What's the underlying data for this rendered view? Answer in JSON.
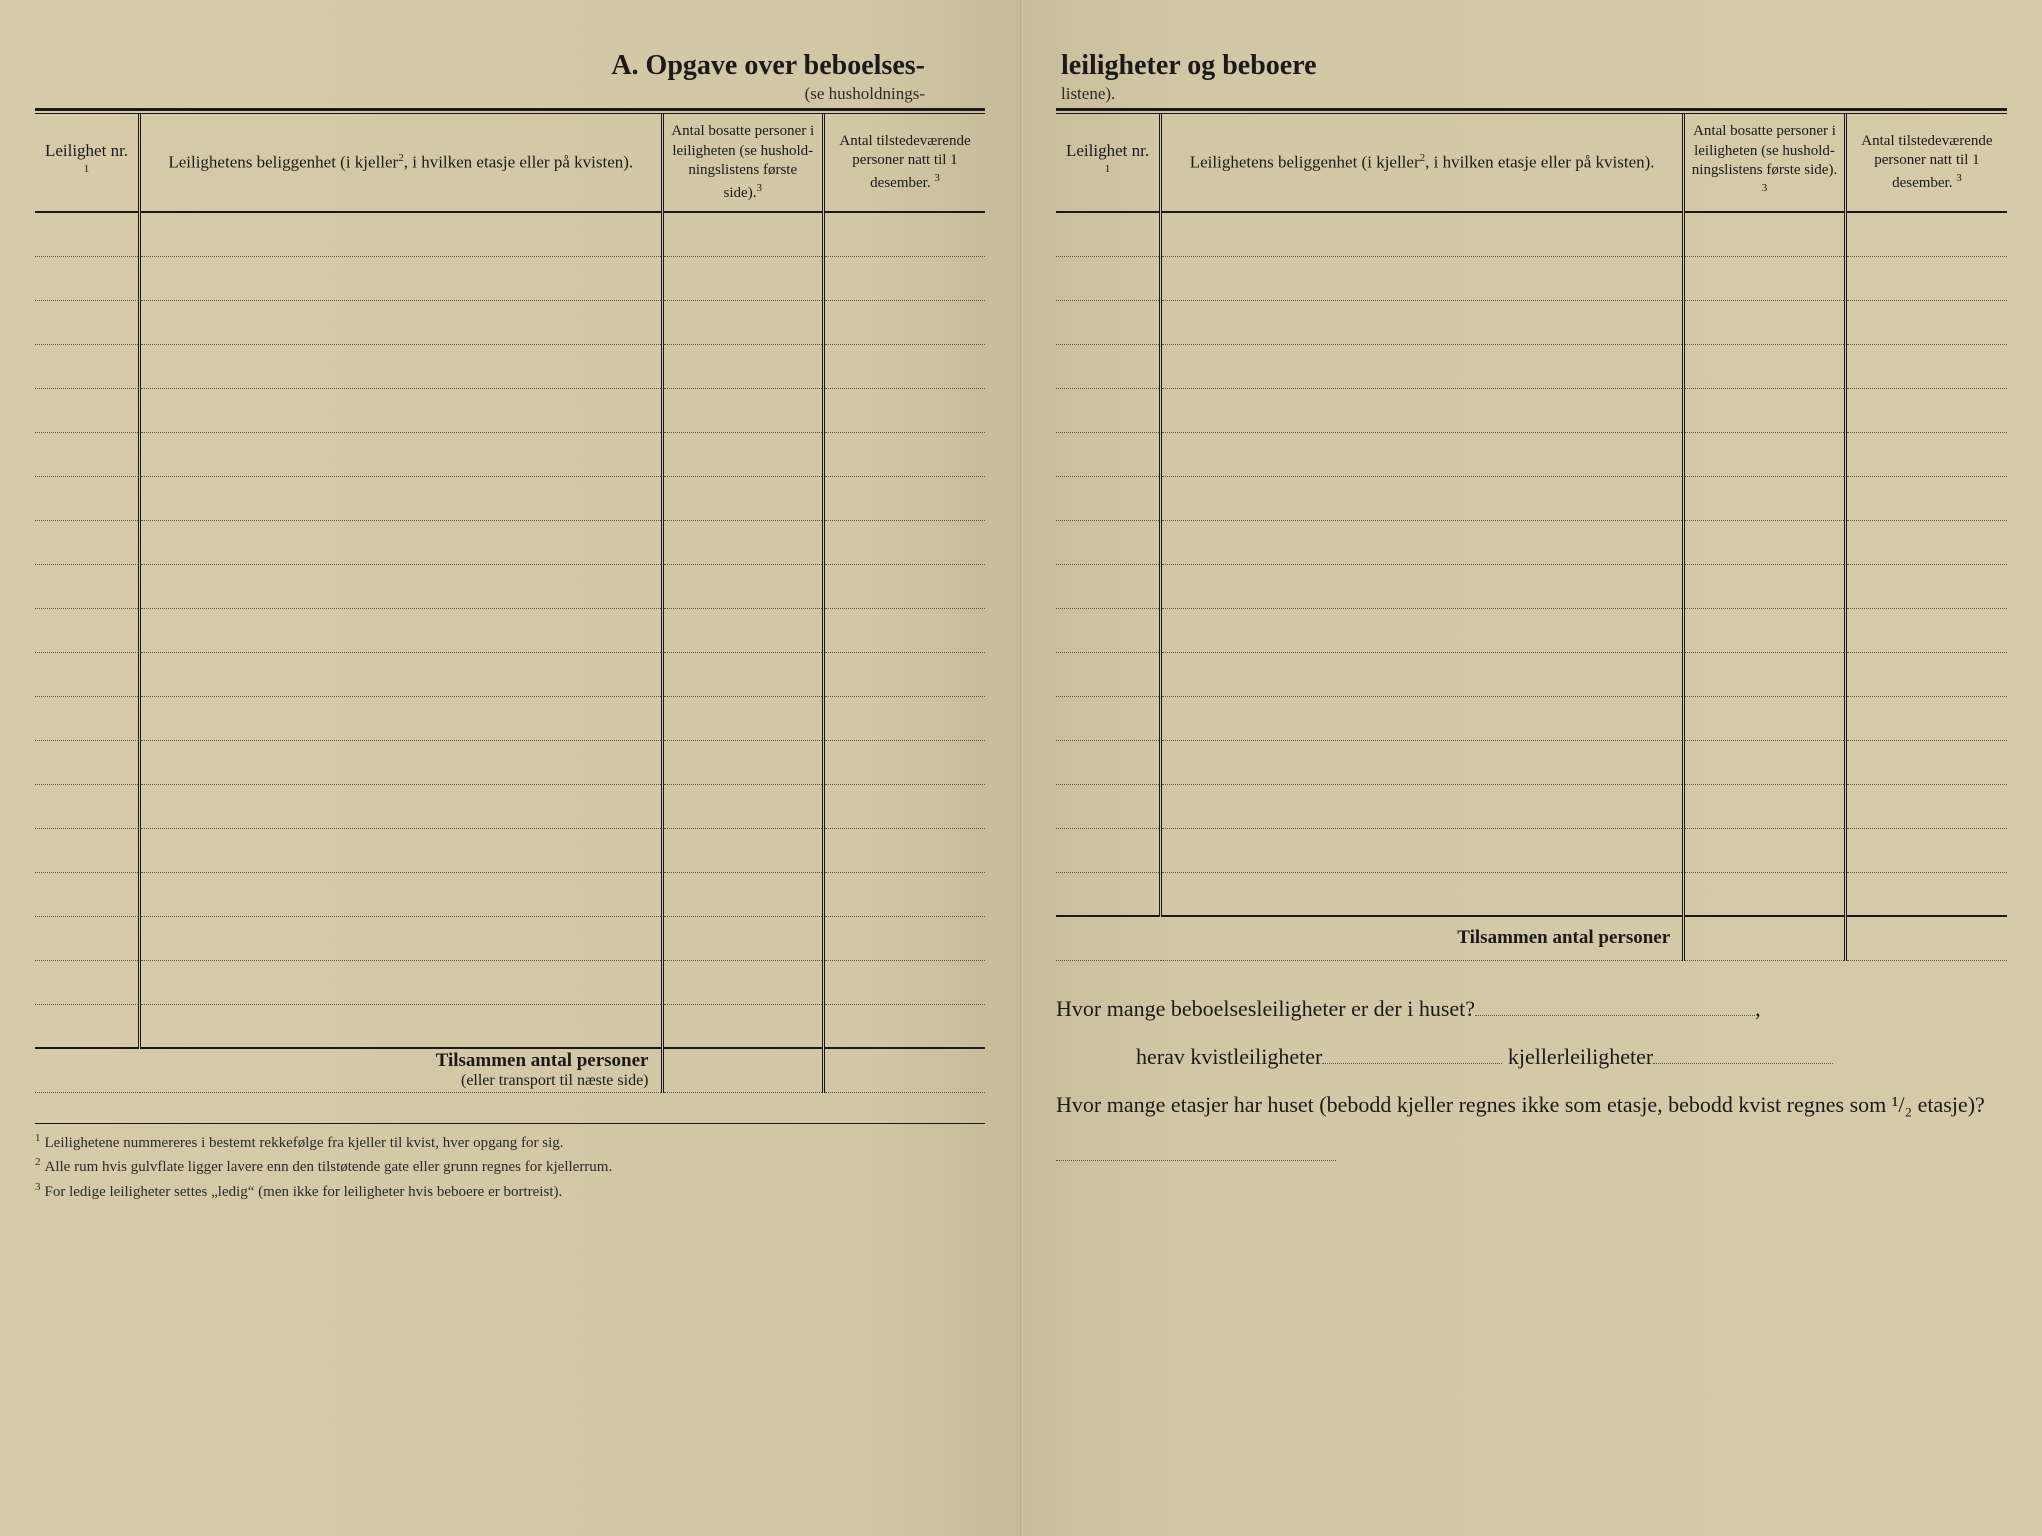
{
  "title_left": "A.  Opgave over beboelses-",
  "subtitle_left": "(se husholdnings-",
  "title_right": "leiligheter og beboere",
  "subtitle_right": "listene).",
  "columns": {
    "nr": "Leilighet nr.",
    "nr_sup": "1",
    "loc": "Leilighetens beliggenhet (i kjeller",
    "loc_sup": "2",
    "loc_tail": ", i hvilken etasje eller på kvisten).",
    "n1": "Antal bosat­te personer i leiligheten (se hushold­ningslistens første side).",
    "n1_sup": "3",
    "n2": "Antal tilste­deværende personer natt til 1 desember.",
    "n2_sup": "3"
  },
  "left_rows": 19,
  "right_rows": 16,
  "summary_left": "Tilsammen antal personer",
  "summary_left_sub": "(eller transport til næste side)",
  "summary_right": "Tilsammen antal personer",
  "footnotes": [
    "Leilighetene nummereres i bestemt rekkefølge fra kjeller til kvist, hver opgang for sig.",
    "Alle rum hvis gulvflate ligger lavere enn den tilstøtende gate eller grunn regnes for kjellerrum.",
    "For ledige leiligheter settes „ledig“ (men ikke for leiligheter hvis beboere er bortreist)."
  ],
  "questions": {
    "q1": "Hvor mange beboelsesleiligheter er der i huset?",
    "q2a": "herav kvistleiligheter",
    "q2b": "kjellerleiligheter",
    "q3": "Hvor mange etasjer har huset (bebodd kjeller regnes ikke som etasje, bebodd kvist regnes som ¹/₂ etasje)?"
  },
  "colors": {
    "paper": "#d2c7a5",
    "ink": "#1a1a1a",
    "dotted": "#555555"
  }
}
